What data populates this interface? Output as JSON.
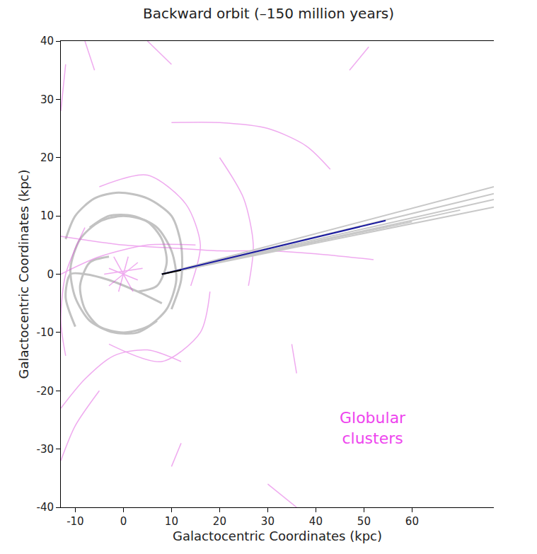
{
  "chart_data": {
    "type": "line",
    "title": "Backward orbit (–150 million years)",
    "x_label": "Galactocentric Coordinates (kpc)",
    "y_label": "Galactocentric Coordinates (kpc)",
    "xlim": [
      -13,
      77
    ],
    "ylim": [
      -40,
      40
    ],
    "xticks": [
      -10,
      0,
      10,
      20,
      30,
      40,
      50,
      60
    ],
    "yticks": [
      -40,
      -30,
      -20,
      -10,
      0,
      10,
      20,
      30,
      40
    ],
    "grid": false,
    "tick_labels": true,
    "annotations": [
      {
        "text": "Globular clusters",
        "color": "#ee44ee"
      }
    ],
    "series": [
      {
        "type": "line",
        "line_style": "solid",
        "color": "#9a9a9a",
        "x": [
          3,
          7,
          9,
          8,
          5,
          0,
          -5,
          -9,
          -11,
          -10,
          -7,
          -2,
          3,
          7,
          null,
          -3,
          -7,
          -9,
          -8,
          -5,
          0,
          5,
          9,
          11,
          10,
          7,
          2,
          -3,
          -7,
          null,
          10,
          12,
          12,
          10,
          5,
          -1,
          -6,
          -10,
          -12,
          null,
          -10,
          -12,
          -11,
          -8,
          -3,
          3,
          8
        ],
        "y": [
          -3,
          -2,
          2,
          6,
          9,
          10,
          9,
          6,
          1,
          -4,
          -8,
          -10,
          -10,
          -8,
          null,
          3,
          2,
          -2,
          -6,
          -9,
          -10,
          -9,
          -6,
          -1,
          4,
          8,
          10,
          10,
          8,
          null,
          -6,
          -1,
          5,
          10,
          13,
          14,
          13,
          10,
          6,
          null,
          -9,
          -4,
          0,
          0,
          -1,
          -3,
          -5
        ]
      },
      {
        "type": "line",
        "line_style": "solid",
        "color": "#dd44dd",
        "x": [
          -13,
          0,
          10,
          20,
          30,
          40,
          52,
          null,
          -13,
          -5,
          5,
          15,
          null,
          10,
          20,
          30,
          38,
          43,
          null,
          -8,
          -6,
          null,
          5,
          10,
          null,
          47,
          51,
          null,
          -13,
          -8,
          -2,
          5,
          12,
          null,
          -13,
          -10,
          -5,
          null,
          12,
          10,
          null,
          35,
          36,
          null,
          30,
          36,
          null,
          -3,
          8,
          16,
          18,
          null,
          -5,
          5,
          13,
          16,
          14,
          null,
          -12,
          -13,
          -12,
          -8,
          null,
          20,
          25,
          27,
          26,
          null,
          -13,
          -12,
          null,
          -3,
          3,
          null,
          -2,
          2,
          null,
          -4,
          4,
          null,
          -1,
          1,
          null,
          -3,
          3
        ],
        "y": [
          6.5,
          5,
          4.5,
          4,
          4,
          3.5,
          2.5,
          null,
          0,
          3,
          5,
          5,
          null,
          26,
          26,
          25,
          22,
          18,
          null,
          40,
          35,
          null,
          40,
          36,
          null,
          35,
          39,
          null,
          -23,
          -18,
          -14,
          -13,
          -15,
          null,
          -32,
          -26,
          -20,
          null,
          -29,
          -33,
          null,
          -12,
          -17,
          null,
          -36,
          -40,
          null,
          -12,
          -15,
          -10,
          -3,
          null,
          15,
          17,
          12,
          5,
          -2,
          null,
          -14,
          -8,
          0,
          8,
          null,
          20,
          13,
          5,
          -2,
          null,
          28,
          36,
          null,
          -2,
          2,
          null,
          3,
          -3,
          null,
          0,
          1,
          null,
          -3,
          3,
          null,
          1,
          -1
        ]
      },
      {
        "type": "line",
        "line_style": "solid",
        "color": "#c8c8c8",
        "x": [
          8,
          77,
          null,
          8,
          77,
          null,
          8,
          77,
          null,
          8,
          77,
          null,
          8,
          70,
          null,
          8,
          60
        ],
        "y": [
          0,
          15,
          null,
          0,
          13.8,
          null,
          0,
          12.8,
          null,
          0,
          11.5,
          null,
          0,
          11,
          null,
          0,
          9
        ]
      },
      {
        "type": "line",
        "line_style": "solid",
        "color": "#1a1aa0",
        "x": [
          8,
          54.5
        ],
        "y": [
          0,
          9.2
        ]
      },
      {
        "type": "line",
        "line_style": "solid",
        "color": "#000000",
        "x": [
          8,
          12
        ],
        "y": [
          0,
          0.7
        ]
      }
    ]
  }
}
